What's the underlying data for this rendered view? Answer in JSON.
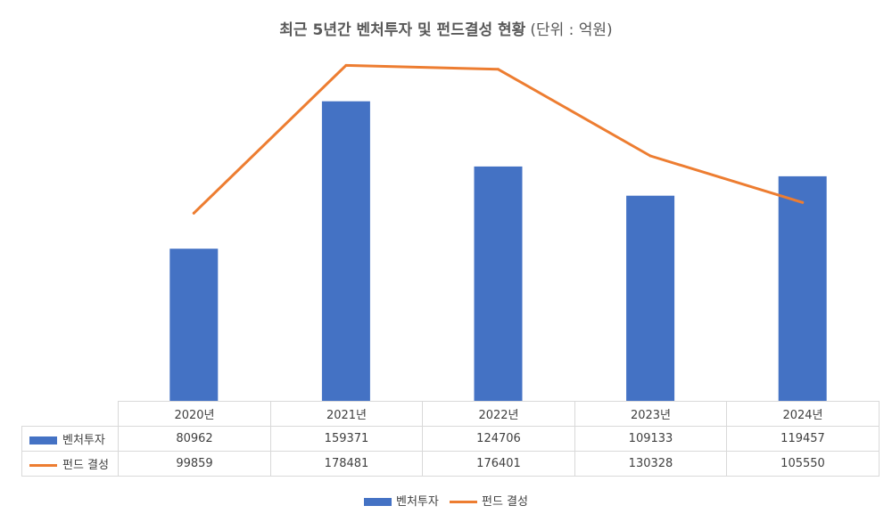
{
  "chart_data": {
    "type": "bar",
    "title": "최근 5년간 벤처투자 및 펀드결성 현황",
    "subtitle": "(단위 : 억원)",
    "categories": [
      "2020년",
      "2021년",
      "2022년",
      "2023년",
      "2024년"
    ],
    "series": [
      {
        "name": "벤처투자",
        "type": "bar",
        "color": "#4472c4",
        "values": [
          80962,
          159371,
          124706,
          109133,
          119457
        ]
      },
      {
        "name": "펀드 결성",
        "type": "line",
        "color": "#ed7d31",
        "values": [
          99859,
          178481,
          176401,
          130328,
          105550
        ]
      }
    ],
    "ylim": [
      0,
      200000
    ],
    "grid": false,
    "legend": "bottom",
    "data_table": true
  }
}
